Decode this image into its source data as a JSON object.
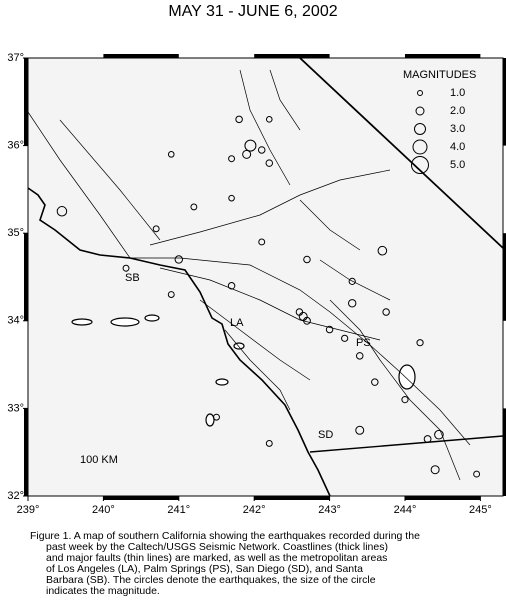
{
  "chart_data": {
    "type": "scatter",
    "title": "MAY 31 - JUNE 6, 2002",
    "xlim": [
      239,
      245.3
    ],
    "ylim": [
      32,
      37
    ],
    "xticks": [
      {
        "value": 239,
        "label": "239°"
      },
      {
        "value": 240,
        "label": "240°"
      },
      {
        "value": 241,
        "label": "241°"
      },
      {
        "value": 242,
        "label": "242°"
      },
      {
        "value": 243,
        "label": "243°"
      },
      {
        "value": 244,
        "label": "244°"
      },
      {
        "value": 245,
        "label": "245°"
      }
    ],
    "yticks": [
      {
        "value": 32,
        "label": "32°"
      },
      {
        "value": 33,
        "label": "33°"
      },
      {
        "value": 34,
        "label": "34°"
      },
      {
        "value": 35,
        "label": "35°"
      },
      {
        "value": 36,
        "label": "36°"
      },
      {
        "value": 37,
        "label": "37°"
      }
    ],
    "legend_title": "MAGNITUDES",
    "legend": [
      {
        "value": 1,
        "label": "1.0"
      },
      {
        "value": 2,
        "label": "2.0"
      },
      {
        "value": 3,
        "label": "3.0"
      },
      {
        "value": 4,
        "label": "4.0"
      },
      {
        "value": 5,
        "label": "5.0"
      }
    ],
    "labels": [
      "SB",
      "LA",
      "PS",
      "SD",
      "100 KM"
    ],
    "x": [
      241.95,
      241.9,
      242.1,
      242.2,
      241.8,
      242.2,
      241.7,
      240.9,
      241.2,
      240.7,
      241.7,
      239.45,
      240.3,
      241.0,
      242.1,
      242.7,
      243.3,
      243.7,
      243.3,
      242.6,
      242.65,
      242.7,
      243.0,
      243.2,
      243.4,
      243.6,
      244.0,
      244.2,
      243.4,
      244.45,
      244.3,
      244.4,
      241.5,
      242.2,
      241.7,
      240.9,
      243.75,
      244.95
    ],
    "y": [
      36.0,
      35.9,
      35.95,
      35.8,
      36.3,
      36.3,
      35.85,
      35.9,
      35.3,
      35.05,
      35.4,
      35.25,
      34.6,
      34.7,
      34.9,
      34.7,
      34.45,
      34.8,
      34.2,
      34.1,
      34.05,
      34.0,
      33.9,
      33.8,
      33.6,
      33.3,
      33.1,
      33.75,
      32.75,
      32.7,
      32.65,
      32.3,
      32.9,
      32.6,
      34.4,
      34.3,
      34.1,
      32.25
    ],
    "magnitudes": [
      3.0,
      2.0,
      1.5,
      1.5,
      1.5,
      1.2,
      1.3,
      1.2,
      1.3,
      1.3,
      1.2,
      2.5,
      1.3,
      1.8,
      1.3,
      1.5,
      1.4,
      2.2,
      1.8,
      1.5,
      2.0,
      1.6,
      1.5,
      1.4,
      1.5,
      1.5,
      1.4,
      1.4,
      2.0,
      2.2,
      1.6,
      2.0,
      1.3,
      1.3,
      1.5,
      1.3,
      1.5,
      1.3
    ],
    "caption": [
      "Figure 1. A map of southern California showing the earthquakes recorded during the",
      "past week by the Caltech/USGS Seismic Network.  Coastlines (thick lines)",
      "and major faults (thin lines) are marked, as well as the metropolitan areas",
      "of Los Angeles (LA), Palm Springs (PS), San Diego (SD), and Santa",
      "Barbara (SB).  The circles denote the earthquakes, the size of the circle",
      "indicates the magnitude."
    ]
  }
}
